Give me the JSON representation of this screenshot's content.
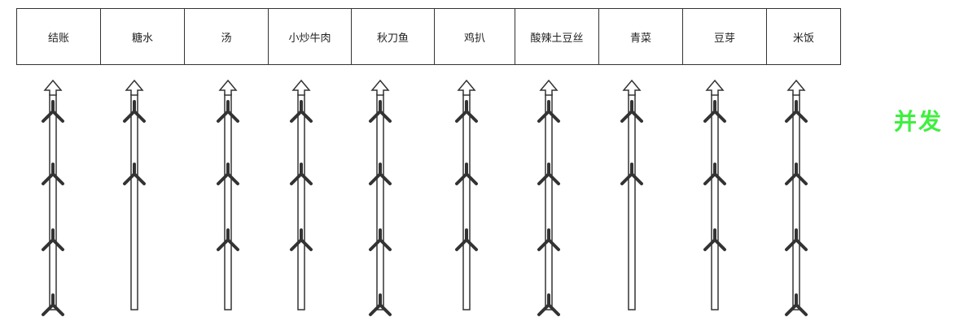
{
  "stations": [
    {
      "label": "结账",
      "requests": 4
    },
    {
      "label": "糖水",
      "requests": 2
    },
    {
      "label": "汤",
      "requests": 3
    },
    {
      "label": "小炒牛肉",
      "requests": 3
    },
    {
      "label": "秋刀鱼",
      "requests": 4
    },
    {
      "label": "鸡扒",
      "requests": 3
    },
    {
      "label": "酸辣土豆丝",
      "requests": 4
    },
    {
      "label": "青菜",
      "requests": 2
    },
    {
      "label": "豆芽",
      "requests": 3
    },
    {
      "label": "米饭",
      "requests": 4
    }
  ],
  "side_label": "并发",
  "colors": {
    "side_label": "#3df03d",
    "line": "#333333"
  }
}
